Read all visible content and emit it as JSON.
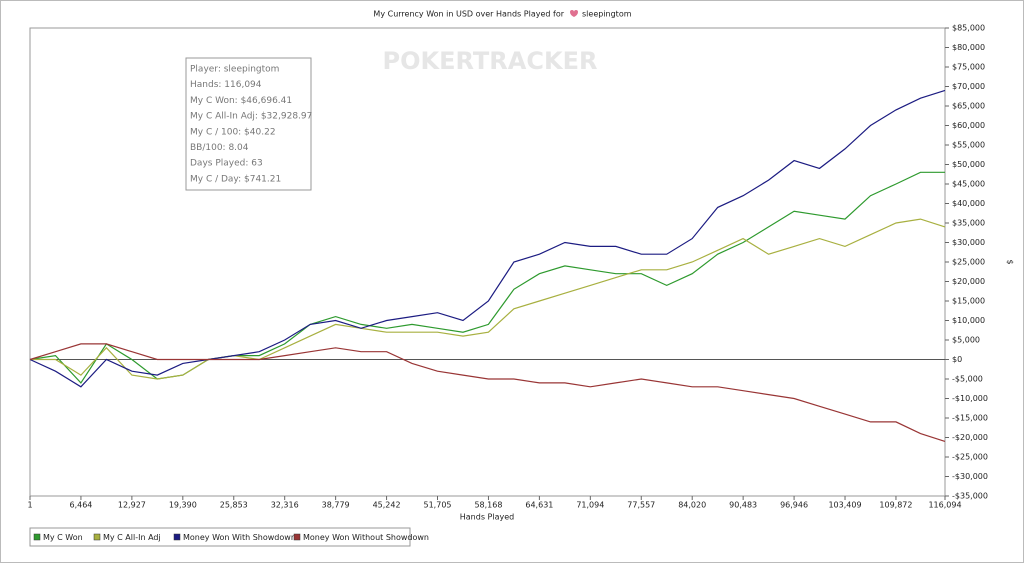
{
  "chart_data": {
    "type": "line",
    "title": "My Currency Won in USD over Hands Played for",
    "title_player": "sleepingtom",
    "watermark": "POKERTRACKER",
    "xlabel": "Hands Played",
    "ylabel": "$",
    "x": [
      1,
      3232,
      6464,
      9696,
      12927,
      16158,
      19390,
      22621,
      25853,
      29084,
      32316,
      35547,
      38779,
      42010,
      45242,
      48473,
      51705,
      54936,
      58168,
      61399,
      64631,
      67862,
      71094,
      74325,
      77557,
      80788,
      84020,
      87251,
      90483,
      93714,
      96946,
      100177,
      103409,
      106640,
      109872,
      112983,
      116094
    ],
    "xlim": [
      1,
      116094
    ],
    "xticks": [
      1,
      {
        "value": 6464,
        "label": "6,464"
      },
      {
        "value": 12927,
        "label": "12,927"
      },
      {
        "value": 19390,
        "label": "19,390"
      },
      {
        "value": 25853,
        "label": "25,853"
      },
      {
        "value": 32316,
        "label": "32,316"
      },
      {
        "value": 38779,
        "label": "38,779"
      },
      {
        "value": 45242,
        "label": "45,242"
      },
      {
        "value": 51705,
        "label": "51,705"
      },
      {
        "value": 58168,
        "label": "58,168"
      },
      {
        "value": 64631,
        "label": "64,631"
      },
      {
        "value": 71094,
        "label": "71,094"
      },
      {
        "value": 77557,
        "label": "77,557"
      },
      {
        "value": 84020,
        "label": "84,020"
      },
      {
        "value": 90483,
        "label": "90,483"
      },
      {
        "value": 96946,
        "label": "96,946"
      },
      {
        "value": 103409,
        "label": "103,409"
      },
      {
        "value": 109872,
        "label": "109,872"
      },
      {
        "value": 116094,
        "label": "116,094"
      }
    ],
    "ylim": [
      -35000,
      85000
    ],
    "yticks": [
      {
        "value": 85000,
        "label": "$85,000"
      },
      {
        "value": 80000,
        "label": "$80,000"
      },
      {
        "value": 75000,
        "label": "$75,000"
      },
      {
        "value": 70000,
        "label": "$70,000"
      },
      {
        "value": 65000,
        "label": "$65,000"
      },
      {
        "value": 60000,
        "label": "$60,000"
      },
      {
        "value": 55000,
        "label": "$55,000"
      },
      {
        "value": 50000,
        "label": "$50,000"
      },
      {
        "value": 45000,
        "label": "$45,000"
      },
      {
        "value": 40000,
        "label": "$40,000"
      },
      {
        "value": 35000,
        "label": "$35,000"
      },
      {
        "value": 30000,
        "label": "$30,000"
      },
      {
        "value": 25000,
        "label": "$25,000"
      },
      {
        "value": 20000,
        "label": "$20,000"
      },
      {
        "value": 15000,
        "label": "$15,000"
      },
      {
        "value": 10000,
        "label": "$10,000"
      },
      {
        "value": 5000,
        "label": "$5,000"
      },
      {
        "value": 0,
        "label": "$0"
      },
      {
        "value": -5000,
        "label": "-$5,000"
      },
      {
        "value": -10000,
        "label": "-$10,000"
      },
      {
        "value": -15000,
        "label": "-$15,000"
      },
      {
        "value": -20000,
        "label": "-$20,000"
      },
      {
        "value": -25000,
        "label": "-$25,000"
      },
      {
        "value": -30000,
        "label": "-$30,000"
      },
      {
        "value": -35000,
        "label": "-$35,000"
      }
    ],
    "series": [
      {
        "name": "My C Won",
        "color": "#2e9a2e",
        "values": [
          0,
          1000,
          -6000,
          4000,
          0,
          -5000,
          -4000,
          0,
          1000,
          1000,
          4000,
          9000,
          11000,
          9000,
          8000,
          9000,
          8000,
          7000,
          9000,
          18000,
          22000,
          24000,
          23000,
          22000,
          22000,
          19000,
          22000,
          27000,
          30000,
          34000,
          38000,
          37000,
          36000,
          42000,
          45000,
          48000,
          48000
        ]
      },
      {
        "name": "My C All-In Adj",
        "color": "#a8b040",
        "values": [
          0,
          0,
          -4000,
          3000,
          -4000,
          -5000,
          -4000,
          0,
          1000,
          0,
          3000,
          6000,
          9000,
          8000,
          7000,
          7000,
          7000,
          6000,
          7000,
          13000,
          15000,
          17000,
          19000,
          21000,
          23000,
          23000,
          25000,
          28000,
          31000,
          27000,
          29000,
          31000,
          29000,
          32000,
          35000,
          36000,
          34000
        ]
      },
      {
        "name": "Money Won With Showdown",
        "color": "#1c1c82",
        "values": [
          0,
          -3000,
          -7000,
          0,
          -3000,
          -4000,
          -1000,
          0,
          1000,
          2000,
          5000,
          9000,
          10000,
          8000,
          10000,
          11000,
          12000,
          10000,
          15000,
          25000,
          27000,
          30000,
          29000,
          29000,
          27000,
          27000,
          31000,
          39000,
          42000,
          46000,
          51000,
          49000,
          54000,
          60000,
          64000,
          67000,
          69000
        ]
      },
      {
        "name": "Money Won Without Showdown",
        "color": "#993535",
        "values": [
          0,
          2000,
          4000,
          4000,
          2000,
          0,
          0,
          0,
          0,
          0,
          1000,
          2000,
          3000,
          2000,
          2000,
          -1000,
          -3000,
          -4000,
          -5000,
          -5000,
          -6000,
          -6000,
          -7000,
          -6000,
          -5000,
          -6000,
          -7000,
          -7000,
          -8000,
          -9000,
          -10000,
          -12000,
          -14000,
          -16000,
          -16000,
          -19000,
          -21000
        ]
      }
    ],
    "info_box": [
      "Player: sleepingtom",
      "Hands: 116,094",
      "My C Won: $46,696.41",
      "My C All-In Adj: $32,928.97",
      "My C / 100: $40.22",
      "BB/100: 8.04",
      "Days Played: 63",
      "My C / Day: $741.21"
    ]
  }
}
